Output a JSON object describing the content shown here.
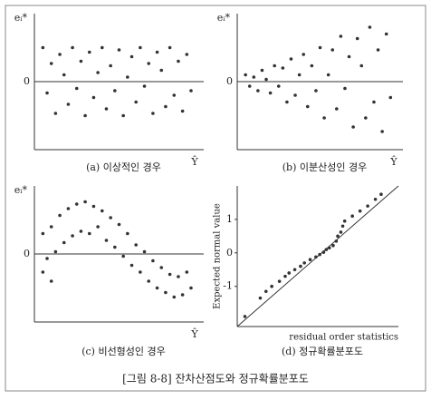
{
  "figure_caption": "[그림 8-8] 잔차산점도와 정규확률분포도",
  "chart_data": [
    {
      "type": "scatter",
      "caption": "(a) 이상적인 경우",
      "x_label": "Ŷ",
      "y_label": "eᵢ*",
      "color": "#333333",
      "grid": true,
      "xlim": [
        0,
        20
      ],
      "ylim": [
        -3,
        3
      ],
      "yticks": [
        0
      ],
      "x": [
        1,
        1.5,
        2,
        2.5,
        3,
        3.5,
        4,
        4.5,
        5,
        5.5,
        6,
        6.5,
        7,
        7.5,
        8,
        8.5,
        9,
        9.5,
        10,
        10.5,
        11,
        11.5,
        12,
        12.5,
        13,
        13.5,
        14,
        14.5,
        15,
        15.5,
        16,
        16.5,
        17,
        17.5,
        18,
        18.5
      ],
      "values": [
        1.5,
        -0.5,
        0.8,
        -1.4,
        1.2,
        0.3,
        -1.0,
        1.5,
        -0.3,
        0.9,
        -1.5,
        1.3,
        -0.7,
        0.4,
        1.5,
        -1.2,
        0.7,
        -0.4,
        1.4,
        -1.5,
        0.2,
        1.1,
        -0.9,
        1.5,
        -0.2,
        0.8,
        -1.4,
        1.3,
        0.5,
        -1.1,
        1.5,
        -0.6,
        0.9,
        -1.3,
        1.2,
        -0.4
      ]
    },
    {
      "type": "scatter",
      "caption": "(b) 이분산성인 경우",
      "x_label": "Ŷ",
      "y_label": "eᵢ*",
      "color": "#333333",
      "grid": true,
      "xlim": [
        0,
        20
      ],
      "ylim": [
        -3,
        3
      ],
      "yticks": [
        0
      ],
      "x": [
        1,
        1.5,
        2,
        2.5,
        3,
        3.5,
        4,
        4.5,
        5,
        5.5,
        6,
        6.5,
        7,
        7.5,
        8,
        8.5,
        9,
        9.5,
        10,
        10.5,
        11,
        11.5,
        12,
        12.5,
        13,
        13.5,
        14,
        14.5,
        15,
        15.5,
        16,
        16.5,
        17,
        17.5,
        18,
        18.5
      ],
      "values": [
        0.3,
        -0.2,
        0.2,
        -0.4,
        0.5,
        0.1,
        -0.5,
        0.7,
        -0.2,
        0.6,
        -0.9,
        1.0,
        -0.6,
        0.3,
        1.2,
        -1.1,
        0.7,
        -0.4,
        1.5,
        -1.6,
        0.3,
        1.4,
        -1.2,
        2.0,
        -0.3,
        1.1,
        -2.0,
        1.9,
        0.7,
        -1.6,
        2.4,
        -0.9,
        1.4,
        -2.2,
        2.1,
        -0.7
      ]
    },
    {
      "type": "scatter",
      "caption": "(c) 비선형성인 경우",
      "x_label": "Ŷ",
      "y_label": "eᵢ*",
      "color": "#333333",
      "grid": true,
      "xlim": [
        0,
        20
      ],
      "ylim": [
        -3,
        3
      ],
      "yticks": [
        0
      ],
      "x": [
        1,
        1,
        1.5,
        2,
        2,
        2.5,
        3,
        3.5,
        4,
        4.5,
        5,
        5.5,
        6,
        6.5,
        7,
        7.5,
        8,
        8.5,
        9,
        9.5,
        10,
        10.5,
        11,
        11.5,
        12,
        12.5,
        13,
        13.5,
        14,
        14.5,
        15,
        15.5,
        16,
        16.5,
        17,
        17.5,
        18,
        18.5
      ],
      "values": [
        0.9,
        -0.8,
        -0.2,
        1.2,
        -1.2,
        0.1,
        1.7,
        0.5,
        2.0,
        0.8,
        2.2,
        1.0,
        2.3,
        0.9,
        2.1,
        1.2,
        1.9,
        0.6,
        1.6,
        0.3,
        1.3,
        -0.1,
        0.9,
        -0.5,
        0.4,
        -0.8,
        0.1,
        -1.2,
        -0.3,
        -1.5,
        -0.6,
        -1.7,
        -0.9,
        -1.9,
        -1.0,
        -1.8,
        -0.8,
        -1.5
      ]
    },
    {
      "type": "scatter",
      "caption": "(d) 정규확률분포도",
      "x_label": "residual order statistics",
      "y_label": "Expected normal value",
      "color": "#333333",
      "grid": false,
      "reference_line": true,
      "xlim": [
        -2.2,
        2
      ],
      "ylim": [
        -2.2,
        2
      ],
      "yticks": [
        1,
        0,
        -1
      ],
      "x": [
        -2,
        -1.6,
        -1.45,
        -1.3,
        -1.1,
        -0.95,
        -0.85,
        -0.7,
        -0.55,
        -0.45,
        -0.3,
        -0.15,
        -0.05,
        0.05,
        0.12,
        0.2,
        0.3,
        0.38,
        0.42,
        0.5,
        0.55,
        0.6,
        0.8,
        1.0,
        1.2,
        1.4,
        1.55
      ],
      "values": [
        -1.9,
        -1.35,
        -1.15,
        -1.0,
        -0.85,
        -0.7,
        -0.6,
        -0.5,
        -0.4,
        -0.3,
        -0.2,
        -0.12,
        -0.05,
        0.02,
        0.1,
        0.15,
        0.22,
        0.35,
        0.5,
        0.62,
        0.8,
        0.95,
        1.1,
        1.25,
        1.4,
        1.6,
        1.75
      ]
    }
  ]
}
